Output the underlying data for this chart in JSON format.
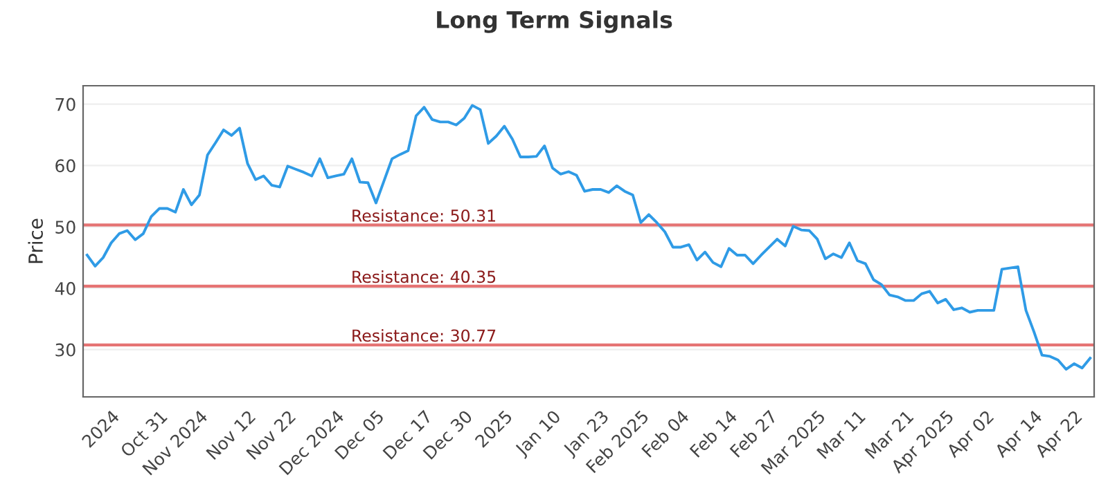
{
  "chart_data": {
    "type": "line",
    "title": "Long Term Signals",
    "ylabel": "Price",
    "categories": [
      null,
      null,
      null,
      "2024",
      null,
      null,
      null,
      null,
      null,
      "Oct 31",
      null,
      null,
      null,
      null,
      "Nov 2024",
      null,
      null,
      null,
      null,
      null,
      "Nov 12",
      null,
      null,
      null,
      null,
      "Nov 22",
      null,
      null,
      null,
      null,
      null,
      "Dec 2024",
      null,
      null,
      null,
      null,
      "Dec 05",
      null,
      null,
      null,
      null,
      null,
      "Dec 17",
      null,
      null,
      null,
      null,
      "Dec 30",
      null,
      null,
      null,
      null,
      "2025",
      null,
      null,
      null,
      null,
      null,
      "Jan 10",
      null,
      null,
      null,
      null,
      null,
      "Jan 23",
      null,
      null,
      null,
      null,
      "Feb 2025",
      null,
      null,
      null,
      null,
      "Feb 04",
      null,
      null,
      null,
      null,
      null,
      "Feb 14",
      null,
      null,
      null,
      null,
      "Feb 27",
      null,
      null,
      null,
      null,
      null,
      "Mar 2025",
      null,
      null,
      null,
      null,
      "Mar 11",
      null,
      null,
      null,
      null,
      null,
      "Mar 21",
      null,
      null,
      null,
      null,
      "Apr 2025",
      null,
      null,
      null,
      null,
      "Apr 02",
      null,
      null,
      null,
      null,
      null,
      "Apr 14",
      null,
      null,
      null,
      null,
      "Apr 22",
      null,
      null
    ],
    "series": [
      {
        "color": "#2f9be6",
        "values": [
          45.4,
          43.6,
          45,
          47.4,
          48.9,
          49.4,
          47.9,
          48.9,
          51.7,
          53,
          53,
          52.4,
          56.1,
          53.6,
          55.2,
          61.7,
          63.7,
          65.8,
          64.9,
          66.1,
          60.3,
          57.7,
          58.3,
          56.8,
          56.5,
          59.9,
          59.4,
          58.9,
          58.3,
          61.1,
          58,
          58.3,
          58.6,
          61.1,
          57.3,
          57.2,
          53.9,
          57.5,
          61.1,
          61.8,
          62.4,
          68.1,
          69.5,
          67.5,
          67.1,
          67.1,
          66.6,
          67.7,
          69.8,
          69.1,
          63.6,
          64.8,
          66.4,
          64.3,
          61.4,
          61.4,
          61.5,
          63.2,
          59.6,
          58.6,
          59,
          58.4,
          55.8,
          56.1,
          56.1,
          55.6,
          56.7,
          55.8,
          55.2,
          50.7,
          52,
          50.7,
          49.2,
          46.7,
          46.7,
          47.1,
          44.6,
          45.9,
          44.2,
          43.5,
          46.5,
          45.4,
          45.4,
          44,
          45.4,
          46.7,
          48,
          46.9,
          50.1,
          49.5,
          49.4,
          48,
          44.8,
          45.6,
          45,
          47.4,
          44.5,
          44,
          41.4,
          40.6,
          38.9,
          38.6,
          38,
          38,
          39.1,
          39.5,
          37.6,
          38.2,
          36.5,
          36.8,
          36.1,
          36.4,
          36.4,
          36.4,
          43.1,
          43.3,
          43.5,
          36.4,
          32.9,
          29.1,
          28.9,
          28.3,
          26.8,
          27.7,
          27,
          28.6
        ]
      }
    ],
    "ylim": [
      22.3,
      73
    ],
    "yticks": [
      30,
      40,
      50,
      60,
      70
    ],
    "grid": "y",
    "legend": false,
    "marker": "none",
    "line_style": "solid",
    "ref_lines": [
      {
        "axis": "y",
        "value": 50.31,
        "label": "Resistance: 50.31",
        "color": "#e57373"
      },
      {
        "axis": "y",
        "value": 40.35,
        "label": "Resistance: 40.35",
        "color": "#e57373"
      },
      {
        "axis": "y",
        "value": 30.77,
        "label": "Resistance: 30.77",
        "color": "#e57373"
      }
    ]
  }
}
